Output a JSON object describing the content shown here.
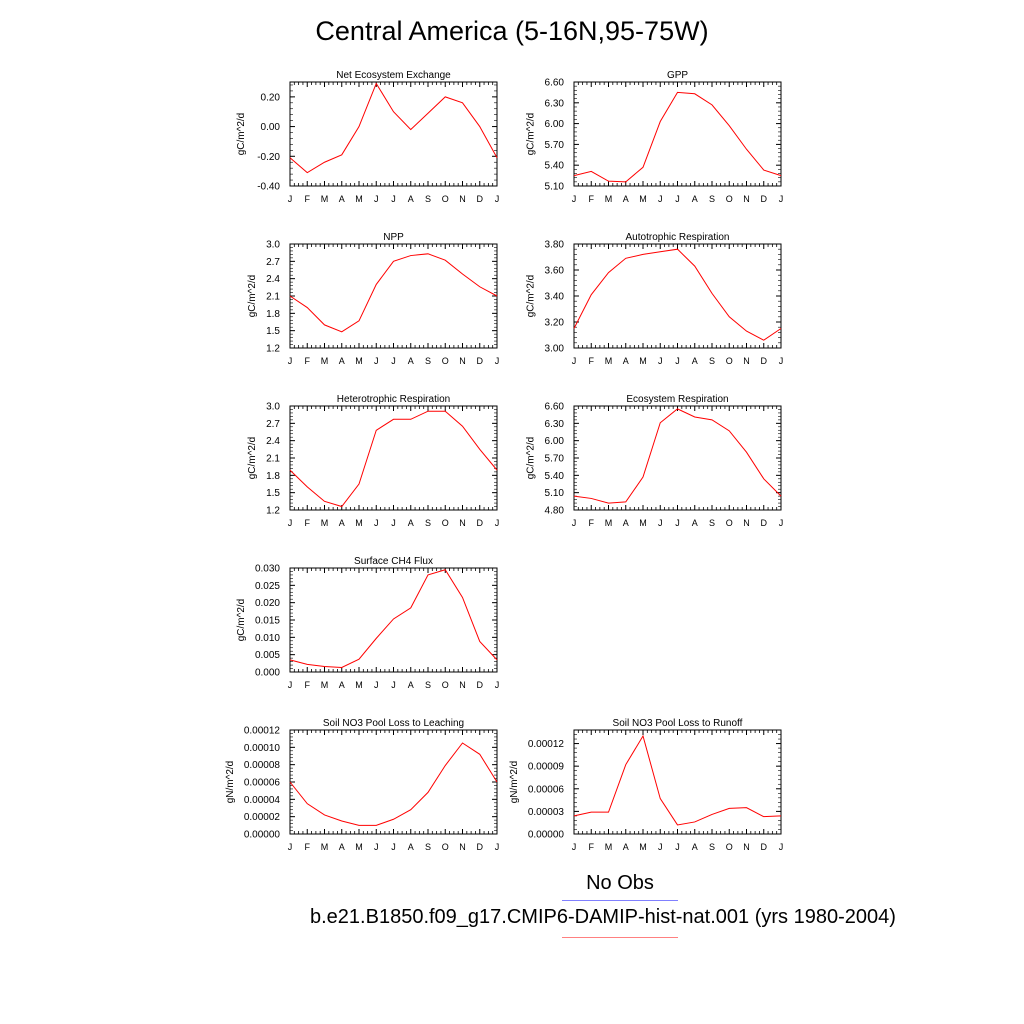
{
  "page": {
    "title": "Central America (5-16N,95-75W)",
    "legend": {
      "obs_label": "No Obs",
      "obs_color": "#8080ff",
      "case_label": "b.e21.B1850.f09_g17.CMIP6-DAMIP-hist-nat.001 (yrs 1980-2004)",
      "case_color": "#ff8080"
    },
    "line_color": "#ff0000"
  },
  "chart_data": [
    {
      "type": "line",
      "title": "Net Ecosystem Exchange",
      "ylabel": "gC/m^2/d",
      "categories": [
        "J",
        "F",
        "M",
        "A",
        "M",
        "J",
        "J",
        "A",
        "S",
        "O",
        "N",
        "D",
        "J"
      ],
      "yticks": [
        "-0.40",
        "-0.20",
        "0.00",
        "0.20"
      ],
      "ylim": [
        -0.4,
        0.3
      ],
      "grid": false,
      "series": [
        {
          "values": [
            -0.21,
            -0.31,
            -0.24,
            -0.19,
            0.0,
            0.29,
            0.1,
            -0.02,
            0.09,
            0.2,
            0.16,
            0.0,
            -0.21
          ]
        }
      ]
    },
    {
      "type": "line",
      "title": "GPP",
      "ylabel": "gC/m^2/d",
      "categories": [
        "J",
        "F",
        "M",
        "A",
        "M",
        "J",
        "J",
        "A",
        "S",
        "O",
        "N",
        "D",
        "J"
      ],
      "yticks": [
        "5.10",
        "5.40",
        "5.70",
        "6.00",
        "6.30",
        "6.60"
      ],
      "ylim": [
        5.1,
        6.6
      ],
      "grid": false,
      "series": [
        {
          "values": [
            5.25,
            5.31,
            5.17,
            5.16,
            5.37,
            6.03,
            6.45,
            6.43,
            6.27,
            5.97,
            5.63,
            5.33,
            5.25
          ]
        }
      ]
    },
    {
      "type": "line",
      "title": "NPP",
      "ylabel": "gC/m^2/d",
      "categories": [
        "J",
        "F",
        "M",
        "A",
        "M",
        "J",
        "J",
        "A",
        "S",
        "O",
        "N",
        "D",
        "J"
      ],
      "yticks": [
        "1.2",
        "1.5",
        "1.8",
        "2.1",
        "2.4",
        "2.7",
        "3.0"
      ],
      "ylim": [
        1.2,
        3.0
      ],
      "grid": false,
      "series": [
        {
          "values": [
            2.1,
            1.9,
            1.6,
            1.48,
            1.67,
            2.3,
            2.7,
            2.8,
            2.83,
            2.72,
            2.48,
            2.26,
            2.1
          ]
        }
      ]
    },
    {
      "type": "line",
      "title": "Autotrophic Respiration",
      "ylabel": "gC/m^2/d",
      "categories": [
        "J",
        "F",
        "M",
        "A",
        "M",
        "J",
        "J",
        "A",
        "S",
        "O",
        "N",
        "D",
        "J"
      ],
      "yticks": [
        "3.00",
        "3.20",
        "3.40",
        "3.60",
        "3.80"
      ],
      "ylim": [
        3.0,
        3.8
      ],
      "grid": false,
      "series": [
        {
          "values": [
            3.15,
            3.41,
            3.58,
            3.69,
            3.72,
            3.74,
            3.76,
            3.63,
            3.42,
            3.24,
            3.13,
            3.06,
            3.15
          ]
        }
      ]
    },
    {
      "type": "line",
      "title": "Heterotrophic Respiration",
      "ylabel": "gC/m^2/d",
      "categories": [
        "J",
        "F",
        "M",
        "A",
        "M",
        "J",
        "J",
        "A",
        "S",
        "O",
        "N",
        "D",
        "J"
      ],
      "yticks": [
        "1.2",
        "1.5",
        "1.8",
        "2.1",
        "2.4",
        "2.7",
        "3.0"
      ],
      "ylim": [
        1.2,
        3.0
      ],
      "grid": false,
      "series": [
        {
          "values": [
            1.89,
            1.6,
            1.35,
            1.26,
            1.65,
            2.58,
            2.77,
            2.77,
            2.91,
            2.91,
            2.65,
            2.25,
            1.89
          ]
        }
      ]
    },
    {
      "type": "line",
      "title": "Ecosystem Respiration",
      "ylabel": "gC/m^2/d",
      "categories": [
        "J",
        "F",
        "M",
        "A",
        "M",
        "J",
        "J",
        "A",
        "S",
        "O",
        "N",
        "D",
        "J"
      ],
      "yticks": [
        "4.80",
        "5.10",
        "5.40",
        "5.70",
        "6.00",
        "6.30",
        "6.60"
      ],
      "ylim": [
        4.8,
        6.6
      ],
      "grid": false,
      "series": [
        {
          "values": [
            5.04,
            5.0,
            4.92,
            4.94,
            5.37,
            6.31,
            6.55,
            6.41,
            6.36,
            6.17,
            5.8,
            5.34,
            5.04
          ]
        }
      ]
    },
    {
      "type": "line",
      "title": "Surface CH4 Flux",
      "ylabel": "gC/m^2/d",
      "categories": [
        "J",
        "F",
        "M",
        "A",
        "M",
        "J",
        "J",
        "A",
        "S",
        "O",
        "N",
        "D",
        "J"
      ],
      "yticks": [
        "0.000",
        "0.005",
        "0.010",
        "0.015",
        "0.020",
        "0.025",
        "0.030"
      ],
      "ylim": [
        0.0,
        0.03
      ],
      "grid": false,
      "series": [
        {
          "values": [
            0.0035,
            0.0022,
            0.0016,
            0.0013,
            0.0037,
            0.0097,
            0.0153,
            0.0185,
            0.028,
            0.0295,
            0.0215,
            0.0088,
            0.0035
          ]
        }
      ]
    },
    {
      "type": "line",
      "title": "Soil NO3 Pool Loss to Leaching",
      "ylabel": "gN/m^2/d",
      "categories": [
        "J",
        "F",
        "M",
        "A",
        "M",
        "J",
        "J",
        "A",
        "S",
        "O",
        "N",
        "D",
        "J"
      ],
      "yticks": [
        "0.00000",
        "0.00002",
        "0.00004",
        "0.00006",
        "0.00008",
        "0.00010",
        "0.00012"
      ],
      "ylim": [
        0.0,
        0.00012
      ],
      "grid": false,
      "series": [
        {
          "values": [
            6e-05,
            3.5e-05,
            2.2e-05,
            1.5e-05,
            1e-05,
            1e-05,
            1.7e-05,
            2.8e-05,
            4.8e-05,
            7.9e-05,
            0.000105,
            9.2e-05,
            6e-05
          ]
        }
      ]
    },
    {
      "type": "line",
      "title": "Soil NO3 Pool Loss to Runoff",
      "ylabel": "gN/m^2/d",
      "categories": [
        "J",
        "F",
        "M",
        "A",
        "M",
        "J",
        "J",
        "A",
        "S",
        "O",
        "N",
        "D",
        "J"
      ],
      "yticks": [
        "0.00000",
        "0.00003",
        "0.00006",
        "0.00009",
        "0.00012"
      ],
      "ylim": [
        0.0,
        0.000138
      ],
      "grid": false,
      "series": [
        {
          "values": [
            2.4e-05,
            2.9e-05,
            2.9e-05,
            9.2e-05,
            0.00013,
            4.7e-05,
            1.2e-05,
            1.6e-05,
            2.6e-05,
            3.4e-05,
            3.5e-05,
            2.3e-05,
            2.4e-05
          ]
        }
      ]
    }
  ]
}
